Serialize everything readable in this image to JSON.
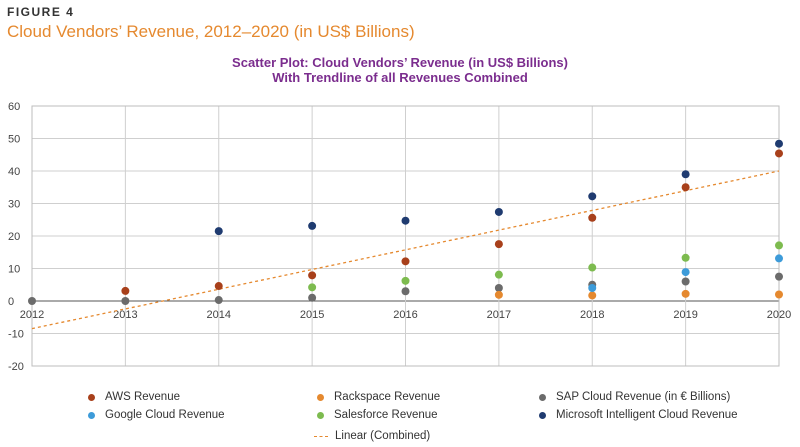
{
  "figure": {
    "label": "FIGURE 4",
    "title": "Cloud Vendors’ Revenue, 2012–2020 (in US$ Billions)"
  },
  "chart_data": {
    "type": "scatter",
    "title_line1": "Scatter Plot: Cloud Vendors’ Revenue (in US$ Billions)",
    "title_line2": "With Trendline of all Revenues Combined",
    "x": [
      "2012",
      "2013",
      "2014",
      "2015",
      "2016",
      "2017",
      "2018",
      "2019",
      "2020"
    ],
    "ylim": [
      -20,
      60
    ],
    "yticks": [
      60,
      50,
      40,
      30,
      20,
      10,
      0,
      -10,
      -20
    ],
    "grid": true,
    "series": [
      {
        "name": "SAP Cloud Revenue (in € Billions)",
        "color": "#6b6b6b",
        "values": [
          0,
          0,
          0.3,
          1,
          3,
          4,
          5,
          6,
          7.5
        ]
      },
      {
        "name": "AWS Revenue",
        "color": "#a8401b",
        "values": [
          null,
          3.1,
          4.6,
          7.9,
          12.2,
          17.5,
          25.6,
          35,
          45.4
        ]
      },
      {
        "name": "Rackspace Revenue",
        "color": "#e5892f",
        "values": [
          null,
          null,
          null,
          null,
          null,
          1.9,
          1.7,
          2.2,
          2.0
        ]
      },
      {
        "name": "Google Cloud Revenue",
        "color": "#3d9bd9",
        "values": [
          null,
          null,
          null,
          null,
          null,
          null,
          4,
          8.9,
          13.1
        ]
      },
      {
        "name": "Salesforce Revenue",
        "color": "#7dbb4f",
        "values": [
          null,
          null,
          null,
          4.2,
          6.2,
          8.1,
          10.3,
          13.3,
          17.1
        ]
      },
      {
        "name": "Microsoft Intelligent Cloud Revenue",
        "color": "#1f3b70",
        "values": [
          null,
          null,
          21.5,
          23.1,
          24.7,
          27.4,
          32.2,
          39.0,
          48.4
        ]
      }
    ],
    "trendline": {
      "name": "Linear (Combined)",
      "color": "#e5892f",
      "start": -8.5,
      "end": 40
    }
  },
  "legend": [
    {
      "label": "AWS Revenue",
      "color": "#a8401b",
      "kind": "dot"
    },
    {
      "label": "Rackspace Revenue",
      "color": "#e5892f",
      "kind": "dot"
    },
    {
      "label": "SAP Cloud Revenue (in € Billions)",
      "color": "#6b6b6b",
      "kind": "dot"
    },
    {
      "label": "Google Cloud Revenue",
      "color": "#3d9bd9",
      "kind": "dot"
    },
    {
      "label": "Salesforce Revenue",
      "color": "#7dbb4f",
      "kind": "dot"
    },
    {
      "label": "Microsoft Intelligent Cloud Revenue",
      "color": "#1f3b70",
      "kind": "dot"
    },
    {
      "label": "Linear (Combined)",
      "color": "#e5892f",
      "kind": "dash"
    }
  ]
}
